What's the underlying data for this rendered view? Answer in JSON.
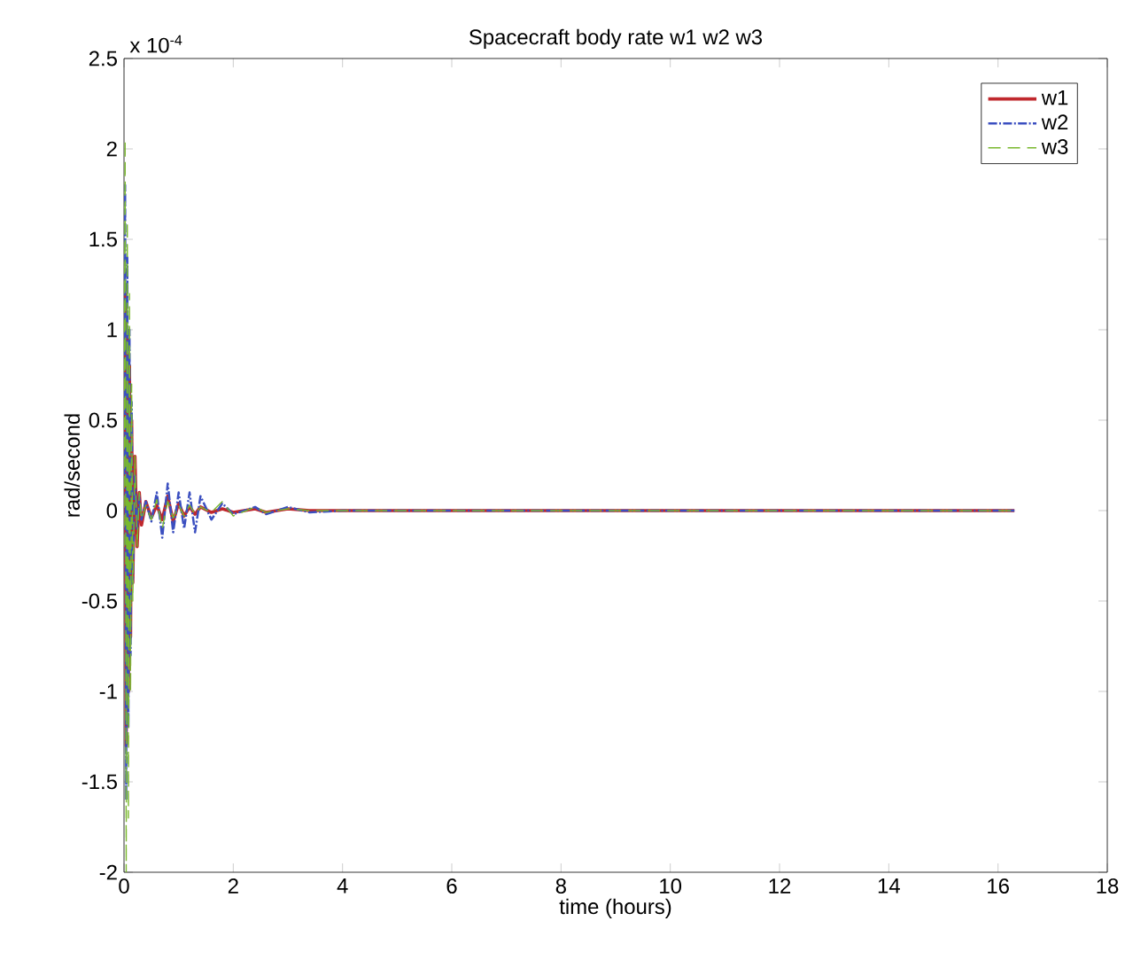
{
  "chart_data": {
    "type": "line",
    "title": "Spacecraft body rate w1 w2 w3",
    "xlabel": "time (hours)",
    "ylabel": "rad/second",
    "annotations": [
      "x 10$^{-4}$"
    ],
    "xlim": [
      0,
      18
    ],
    "xticks": [
      0,
      2,
      4,
      6,
      8,
      10,
      12,
      14,
      16,
      18
    ],
    "ylim": [
      -2,
      2.5
    ],
    "yticks": [
      -2,
      -1.5,
      -1,
      -0.5,
      0,
      0.5,
      1,
      1.5,
      2,
      2.5
    ],
    "grid": false,
    "legend": "top right",
    "marker": "none",
    "series": [
      {
        "name": "w1",
        "color": "#c0282d",
        "line_style": "solid",
        "x": [
          0,
          0.02,
          0.04,
          0.06,
          0.08,
          0.1,
          0.12,
          0.14,
          0.16,
          0.2,
          0.24,
          0.28,
          0.32,
          0.4,
          0.5,
          0.6,
          0.7,
          0.8,
          0.9,
          1.0,
          1.1,
          1.2,
          1.3,
          1.4,
          1.6,
          1.8,
          2.0,
          2.4,
          2.6,
          3.0,
          3.4,
          4,
          6,
          8,
          10,
          12,
          14,
          16.3
        ],
        "values": [
          0.3,
          1.2,
          -1.3,
          1.0,
          -1.0,
          0.8,
          -0.7,
          0.5,
          -0.4,
          0.3,
          -0.2,
          0.1,
          -0.08,
          0.05,
          -0.04,
          0.03,
          -0.05,
          0.08,
          -0.06,
          0.04,
          -0.03,
          0.02,
          -0.02,
          0.02,
          -0.01,
          0.01,
          -0.01,
          0.01,
          -0.01,
          0.01,
          0,
          0,
          0,
          0,
          0,
          0,
          0,
          0
        ]
      },
      {
        "name": "w2",
        "color": "#3b4fc0",
        "line_style": "dashdot",
        "x": [
          0,
          0.02,
          0.04,
          0.06,
          0.08,
          0.1,
          0.12,
          0.14,
          0.16,
          0.2,
          0.24,
          0.28,
          0.32,
          0.4,
          0.5,
          0.6,
          0.7,
          0.8,
          0.9,
          1.0,
          1.1,
          1.2,
          1.3,
          1.4,
          1.6,
          1.8,
          2.0,
          2.4,
          2.6,
          3.0,
          3.4,
          4,
          6,
          8,
          10,
          12,
          14,
          16.3
        ],
        "values": [
          0.2,
          1.8,
          -1.6,
          1.4,
          -1.2,
          1.0,
          -0.8,
          0.6,
          -0.4,
          0.2,
          -0.1,
          0.08,
          -0.05,
          0.05,
          -0.06,
          0.1,
          -0.15,
          0.15,
          -0.12,
          0.1,
          -0.1,
          0.1,
          -0.12,
          0.08,
          -0.05,
          0.04,
          -0.02,
          0.02,
          -0.02,
          0.02,
          -0.01,
          0,
          0,
          0,
          0,
          0,
          0,
          0
        ]
      },
      {
        "name": "w3",
        "color": "#7ab82e",
        "line_style": "dashed",
        "x": [
          0,
          0.02,
          0.04,
          0.06,
          0.08,
          0.1,
          0.12,
          0.14,
          0.16,
          0.2,
          0.24,
          0.28,
          0.32,
          0.4,
          0.5,
          0.6,
          0.7,
          0.8,
          0.9,
          1.0,
          1.1,
          1.2,
          1.3,
          1.4,
          1.6,
          1.8,
          2.0,
          2.4,
          2.6,
          3.0,
          3.4,
          4,
          6,
          8,
          10,
          12,
          14,
          16.3
        ],
        "values": [
          -0.2,
          2.05,
          -2.0,
          1.6,
          -1.7,
          1.2,
          -1.0,
          0.7,
          -0.5,
          0.3,
          -0.2,
          0.1,
          -0.05,
          0.03,
          -0.05,
          0.06,
          -0.1,
          0.05,
          -0.04,
          0.03,
          -0.03,
          0.03,
          -0.02,
          0.02,
          -0.01,
          0.05,
          -0.03,
          0.02,
          -0.01,
          0.01,
          0,
          0,
          0,
          0,
          0,
          0,
          0,
          0
        ]
      }
    ]
  }
}
